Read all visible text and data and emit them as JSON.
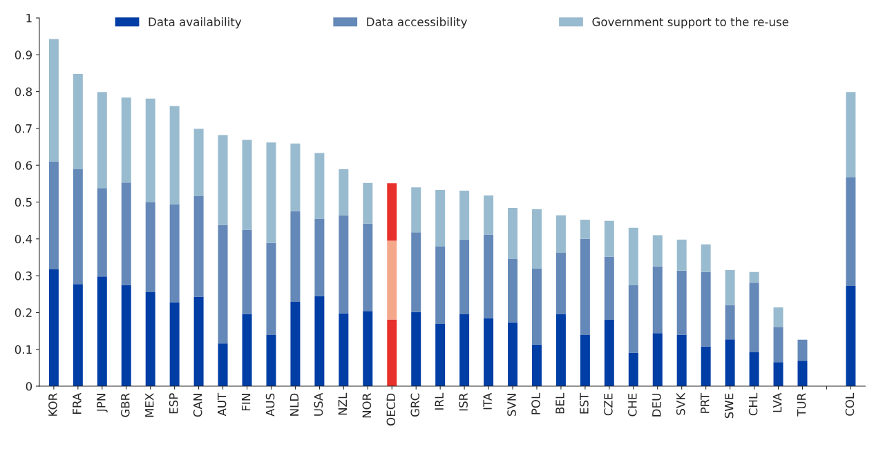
{
  "chart_data": {
    "type": "bar",
    "stacked": true,
    "legend": "top",
    "grid": false,
    "categories": [
      "KOR",
      "FRA",
      "JPN",
      "GBR",
      "MEX",
      "ESP",
      "CAN",
      "AUT",
      "FIN",
      "AUS",
      "NLD",
      "USA",
      "NZL",
      "NOR",
      "OECD",
      "GRC",
      "IRL",
      "ISR",
      "ITA",
      "SVN",
      "POL",
      "BEL",
      "EST",
      "CZE",
      "CHE",
      "DEU",
      "SVK",
      "PRT",
      "SWE",
      "CHL",
      "LVA",
      "TUR",
      null,
      "COL"
    ],
    "ylim": [
      0,
      1
    ],
    "yticks": [
      0,
      0.1,
      0.2,
      0.3,
      0.4,
      0.5,
      0.6,
      0.7,
      0.8,
      0.9,
      1
    ],
    "series": [
      {
        "name": "Data availability",
        "color": "#003da5",
        "colors": [
          "#003da5",
          "#003da5",
          "#003da5",
          "#003da5",
          "#003da5",
          "#003da5",
          "#003da5",
          "#003da5",
          "#003da5",
          "#003da5",
          "#003da5",
          "#003da5",
          "#003da5",
          "#003da5",
          "#e8312a",
          "#003da5",
          "#003da5",
          "#003da5",
          "#003da5",
          "#003da5",
          "#003da5",
          "#003da5",
          "#003da5",
          "#003da5",
          "#003da5",
          "#003da5",
          "#003da5",
          "#003da5",
          "#003da5",
          "#003da5",
          "#003da5",
          "#003da5",
          "#003da5",
          "#003da5"
        ],
        "values": [
          0.317,
          0.277,
          0.298,
          0.275,
          0.255,
          0.228,
          0.243,
          0.116,
          0.196,
          0.139,
          0.229,
          0.245,
          0.198,
          0.204,
          0.181,
          0.201,
          0.169,
          0.195,
          0.185,
          0.173,
          0.113,
          0.196,
          0.139,
          0.18,
          0.091,
          0.144,
          0.14,
          0.108,
          0.127,
          0.092,
          0.065,
          0.069,
          null,
          0.272
        ]
      },
      {
        "name": "Data accessibility",
        "color": "#6488b8",
        "colors": [
          "#6488b8",
          "#6488b8",
          "#6488b8",
          "#6488b8",
          "#6488b8",
          "#6488b8",
          "#6488b8",
          "#6488b8",
          "#6488b8",
          "#6488b8",
          "#6488b8",
          "#6488b8",
          "#6488b8",
          "#6488b8",
          "#f5a78a",
          "#6488b8",
          "#6488b8",
          "#6488b8",
          "#6488b8",
          "#6488b8",
          "#6488b8",
          "#6488b8",
          "#6488b8",
          "#6488b8",
          "#6488b8",
          "#6488b8",
          "#6488b8",
          "#6488b8",
          "#6488b8",
          "#6488b8",
          "#6488b8",
          "#6488b8",
          "#6488b8",
          "#6488b8"
        ],
        "values": [
          0.293,
          0.312,
          0.24,
          0.278,
          0.244,
          0.266,
          0.273,
          0.322,
          0.229,
          0.25,
          0.246,
          0.21,
          0.266,
          0.238,
          0.214,
          0.217,
          0.21,
          0.203,
          0.227,
          0.172,
          0.206,
          0.166,
          0.261,
          0.172,
          0.183,
          0.181,
          0.174,
          0.202,
          0.093,
          0.189,
          0.096,
          0.057,
          null,
          0.296
        ]
      },
      {
        "name": "Government support to the re-use",
        "color": "#99bbcf",
        "colors": [
          "#99bbcf",
          "#99bbcf",
          "#99bbcf",
          "#99bbcf",
          "#99bbcf",
          "#99bbcf",
          "#99bbcf",
          "#99bbcf",
          "#99bbcf",
          "#99bbcf",
          "#99bbcf",
          "#99bbcf",
          "#99bbcf",
          "#99bbcf",
          "#e8312a",
          "#99bbcf",
          "#99bbcf",
          "#99bbcf",
          "#99bbcf",
          "#99bbcf",
          "#99bbcf",
          "#99bbcf",
          "#99bbcf",
          "#99bbcf",
          "#99bbcf",
          "#99bbcf",
          "#99bbcf",
          "#99bbcf",
          "#99bbcf",
          "#99bbcf",
          "#99bbcf",
          "#99bbcf",
          "#99bbcf",
          "#99bbcf"
        ],
        "values": [
          0.333,
          0.259,
          0.261,
          0.231,
          0.282,
          0.267,
          0.183,
          0.244,
          0.244,
          0.273,
          0.184,
          0.178,
          0.125,
          0.11,
          0.156,
          0.122,
          0.154,
          0.133,
          0.106,
          0.139,
          0.162,
          0.102,
          0.052,
          0.097,
          0.156,
          0.085,
          0.084,
          0.075,
          0.095,
          0.029,
          0.053,
          null,
          null,
          0.231
        ]
      }
    ]
  }
}
